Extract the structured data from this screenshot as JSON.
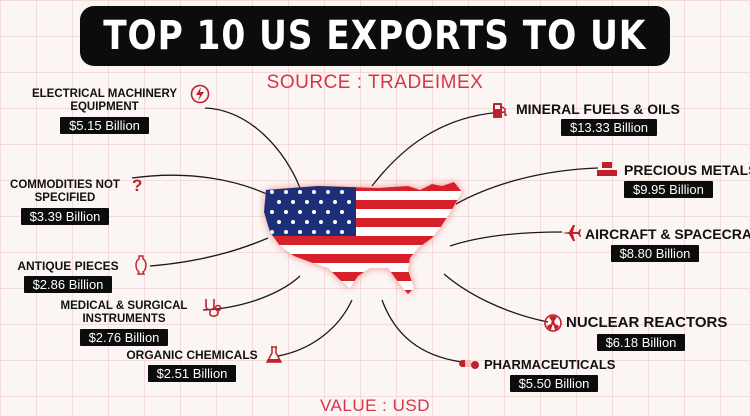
{
  "title": "TOP 10 US EXPORTS TO UK",
  "source": "SOURCE : TRADEIMEX",
  "footer": "VALUE : USD",
  "colors": {
    "accent": "#d6344a",
    "badge": "#0c0c0c",
    "flag_red": "#d8202a",
    "flag_blue": "#1d2f78"
  },
  "exports": [
    {
      "label": "ELECTRICAL MACHINERY EQUIPMENT",
      "value": "$5.15 Billion",
      "icon": "lightning-icon"
    },
    {
      "label": "MINERAL FUELS & OILS",
      "value": "$13.33 Billion",
      "icon": "fuel-pump-icon"
    },
    {
      "label": "COMMODITIES NOT SPECIFIED",
      "value": "$3.39 Billion",
      "icon": "question-mark-icon"
    },
    {
      "label": "PRECIOUS METALS",
      "value": "$9.95 Billion",
      "icon": "gold-bars-icon"
    },
    {
      "label": "AIRCRAFT & SPACECRAFT",
      "value": "$8.80 Billion",
      "icon": "airplane-icon"
    },
    {
      "label": "ANTIQUE PIECES",
      "value": "$2.86 Billion",
      "icon": "antique-vase-icon"
    },
    {
      "label": "MEDICAL & SURGICAL INSTRUMENTS",
      "value": "$2.76 Billion",
      "icon": "stethoscope-icon"
    },
    {
      "label": "NUCLEAR REACTORS",
      "value": "$6.18 Billion",
      "icon": "reactor-icon"
    },
    {
      "label": "ORGANIC CHEMICALS",
      "value": "$2.51 Billion",
      "icon": "flask-icon"
    },
    {
      "label": "PHARMACEUTICALS",
      "value": "$5.50 Billion",
      "icon": "pills-icon"
    }
  ]
}
